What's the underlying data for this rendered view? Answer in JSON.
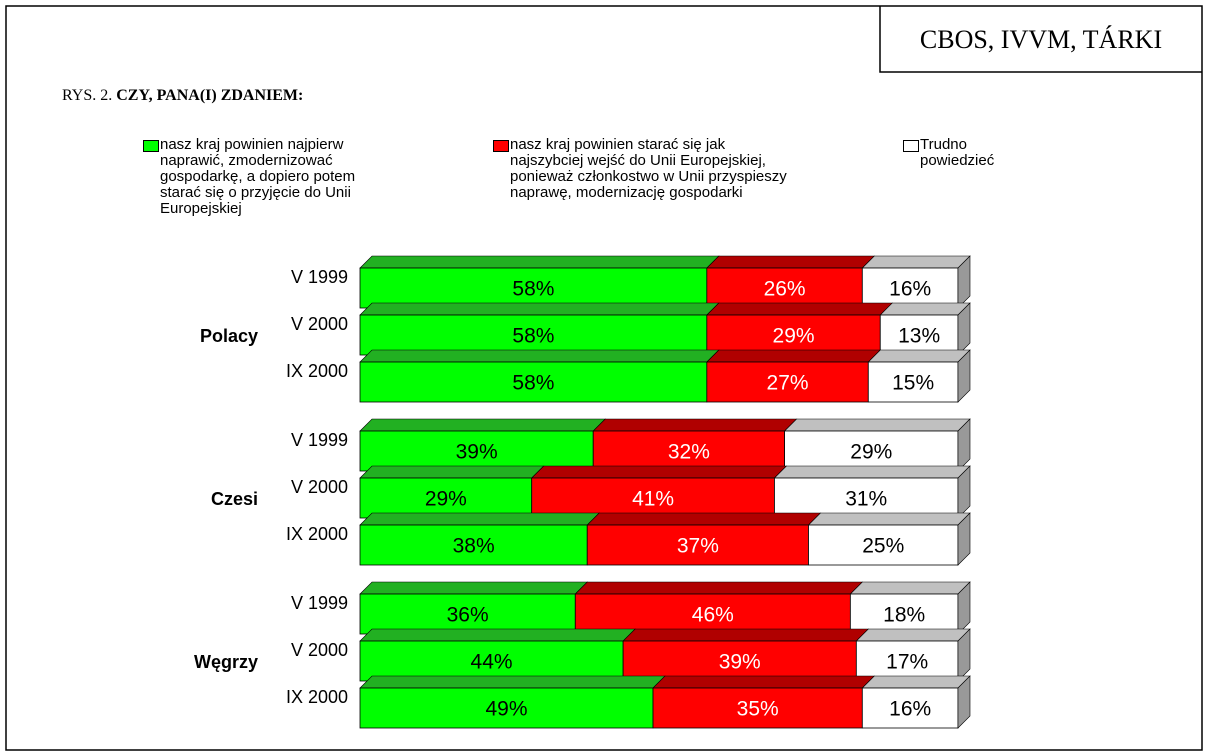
{
  "chart_data": {
    "type": "bar",
    "stacked": true,
    "title_prefix": "RYS. 2.",
    "title": "CZY, PANA(I) ZDANIEM:",
    "source": "CBOS, IVVM, TÁRKI",
    "groups": [
      "Polacy",
      "Czesi",
      "Węgrzy"
    ],
    "categories": [
      "V 1999",
      "V 2000",
      "IX 2000",
      "V 1999",
      "V 2000",
      "IX 2000",
      "V 1999",
      "V 2000",
      "IX 2000"
    ],
    "series": [
      {
        "name": "nasz kraj powinien najpierw naprawić, zmodernizować gospodarkę, a dopiero potem starać się o przyjęcie do Unii Europejskiej",
        "color": "#00ff00",
        "top_color": "#22b022",
        "values": [
          58,
          58,
          58,
          39,
          29,
          38,
          36,
          44,
          49
        ],
        "value_labels": [
          "58%",
          "58%",
          "58%",
          "39%",
          "29%",
          "38%",
          "36%",
          "44%",
          "49%"
        ]
      },
      {
        "name": "nasz kraj powinien starać się jak najszybciej wejść do Unii Europejskiej, ponieważ członkostwo w Unii przyspieszy naprawę, modernizację gospodarki",
        "color": "#ff0000",
        "top_color": "#b00000",
        "values": [
          26,
          29,
          27,
          32,
          41,
          37,
          46,
          39,
          35
        ],
        "value_labels": [
          "26%",
          "29%",
          "27%",
          "32%",
          "41%",
          "37%",
          "46%",
          "39%",
          "35%"
        ]
      },
      {
        "name": "Trudno powiedzieć",
        "color": "#ffffff",
        "top_color": "#c0c0c0",
        "values": [
          16,
          13,
          15,
          29,
          31,
          25,
          18,
          17,
          16
        ],
        "value_labels": [
          "16%",
          "13%",
          "15%",
          "29%",
          "31%",
          "25%",
          "18%",
          "17%",
          "16%"
        ]
      }
    ]
  }
}
